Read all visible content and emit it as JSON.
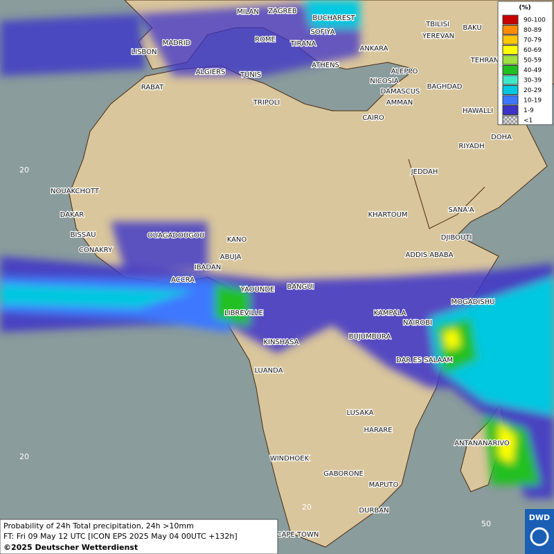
{
  "legend": {
    "unit": "(%)",
    "entries": [
      {
        "label": "90-100",
        "color": "#c80000"
      },
      {
        "label": "80-89",
        "color": "#ff8c00"
      },
      {
        "label": "70-79",
        "color": "#ffc800"
      },
      {
        "label": "60-69",
        "color": "#ffff00"
      },
      {
        "label": "50-59",
        "color": "#a0e040"
      },
      {
        "label": "40-49",
        "color": "#20c020"
      },
      {
        "label": "30-39",
        "color": "#40e8c8"
      },
      {
        "label": "20-29",
        "color": "#00c8e0"
      },
      {
        "label": "10-19",
        "color": "#3c78ff"
      },
      {
        "label": "1-9",
        "color": "#3c32c8"
      },
      {
        "label": "<1",
        "color": "#b4b4b4"
      }
    ]
  },
  "cities": [
    "MILAN",
    "ZAGREB",
    "BUCHAREST",
    "TBILISI",
    "BAKU",
    "SOFIYA",
    "ROME",
    "YEREVAN",
    "MADRID",
    "TIRANA",
    "ANKARA",
    "LISBON",
    "TEHRAN",
    "ALGIERS",
    "TUNIS",
    "ATHENS",
    "ALEPPO",
    "RABAT",
    "NICOSIA",
    "BAGHDAD",
    "DAMASCUS",
    "AMMAN",
    "TRIPOLI",
    "HAWALLI",
    "CAIRO",
    "DOHA",
    "RIYADH",
    "JEDDAH",
    "NOUAKCHOTT",
    "KHARTOUM",
    "SANA'A",
    "DAKAR",
    "BISSAU",
    "OUAGADOUGOU",
    "KANO",
    "DJIBOUTI",
    "CONAKRY",
    "ABUJA",
    "ADDIS ABABA",
    "IBADAN",
    "ACCRA",
    "YAOUNDE",
    "BANGUI",
    "MOGADISHU",
    "LIBREVILLE",
    "KAMPALA",
    "NAIROBI",
    "BUJUMBURA",
    "KINSHASA",
    "DAR ES SALAAM",
    "LUANDA",
    "LUSAKA",
    "HARARE",
    "ANTANANARIVO",
    "WINDHOEK",
    "GABORONE",
    "MAPUTO",
    "DURBAN",
    "CAPE TOWN"
  ],
  "grid_labels": [
    "20",
    "20",
    "20",
    "50"
  ],
  "footer": {
    "line1": "Probability of 24h Total precipitation, 24h >10mm",
    "line2": "FT: Fri 09 May 12 UTC [ICON EPS 2025 May 04 00UTC +132h]",
    "line3": "©2025 Deutscher Wetterdienst"
  },
  "logo": "DWD"
}
